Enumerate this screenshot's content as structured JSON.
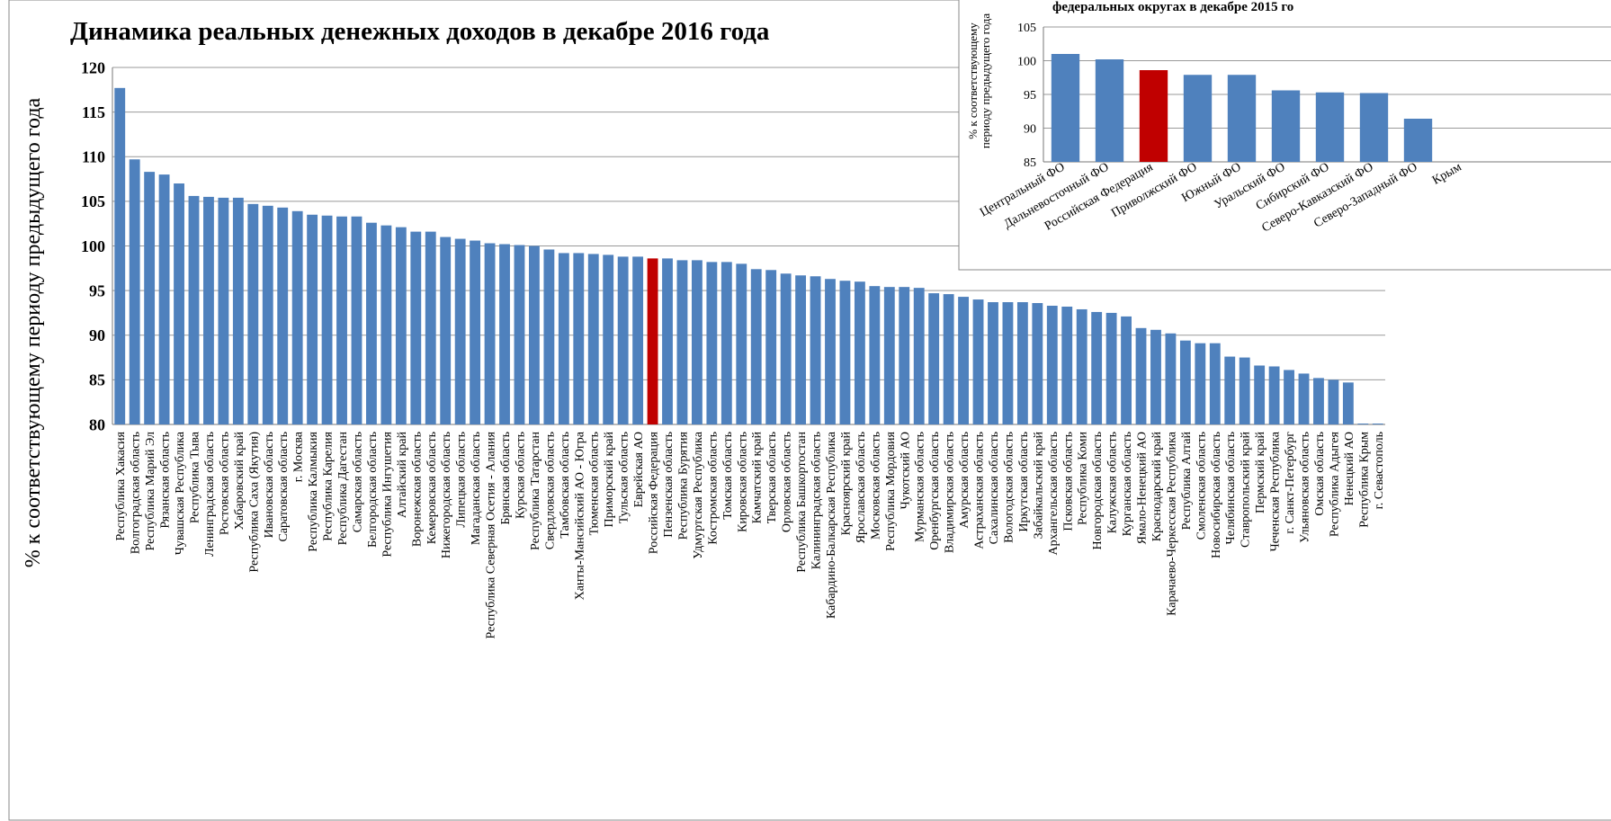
{
  "chart_data": [
    {
      "type": "bar",
      "title": "Динамика реальных денежных доходов  в декабре 2016 года",
      "ylabel": "% к соответствующему периоду предыдущего года",
      "categories": [
        "Республика Хакасия",
        "Волгоградская область",
        "Республика Марий Эл",
        "Рязанская область",
        "Чувашская Республика",
        "Республика Тыва",
        "Ленинградская область",
        "Ростовская область",
        "Хабаровский край",
        "Республика Саха (Якутия)",
        "Ивановская область",
        "Саратовская область",
        "г. Москва",
        "Республика Калмыкия",
        "Республика Карелия",
        "Республика Дагестан",
        "Самарская область",
        "Белгородская область",
        "Республика Ингушетия",
        "Алтайский край",
        "Воронежская область",
        "Кемеровская область",
        "Нижегородская область",
        "Липецкая область",
        "Магаданская область",
        "Республика Северная Осетия - Алания",
        "Брянская область",
        "Курская область",
        "Республика Татарстан",
        "Свердловская область",
        "Тамбовская область",
        "Ханты-Мансийский АО - Югра",
        "Тюменская область",
        "Приморский край",
        "Тульская область",
        "Еврейская АО",
        "Российская Федерация",
        "Пензенская область",
        "Республика Бурятия",
        "Удмуртская Республика",
        "Костромская область",
        "Томская область",
        "Кировская область",
        "Камчатский край",
        "Тверская область",
        "Орловская область",
        "Республика Башкортостан",
        "Калининградская область",
        "Кабардино-Балкарская Республика",
        "Красноярский край",
        "Ярославская область",
        "Московская область",
        "Республика Мордовия",
        "Чукотский АО",
        "Мурманская область",
        "Оренбургская область",
        "Владимирская область",
        "Амурская область",
        "Астраханская область",
        "Сахалинская область",
        "Вологодская область",
        "Иркутская область",
        "Забайкальский край",
        "Архангельская область",
        "Псковская область",
        "Республика Коми",
        "Новгородская область",
        "Калужская область",
        "Курганская область",
        "Ямало-Ненецкий АО",
        "Краснодарский край",
        "Карачаево-Черкесская Республика",
        "Республика Алтай",
        "Смоленская область",
        "Новосибирская область",
        "Челябинская область",
        "Ставропольский край",
        "Пермский край",
        "Чеченская Республика",
        "г. Санкт-Петербург",
        "Ульяновская область",
        "Омская область",
        "Республика Адыгея",
        "Ненецкий АО",
        "Республика Крым",
        "г. Севастополь"
      ],
      "values": [
        117.7,
        109.7,
        108.3,
        108.0,
        107.0,
        105.6,
        105.5,
        105.4,
        105.4,
        104.7,
        104.5,
        104.3,
        103.9,
        103.5,
        103.4,
        103.3,
        103.3,
        102.6,
        102.3,
        102.1,
        101.6,
        101.6,
        101.0,
        100.8,
        100.6,
        100.3,
        100.2,
        100.1,
        100.0,
        99.6,
        99.2,
        99.2,
        99.1,
        99.0,
        98.8,
        98.8,
        98.6,
        98.6,
        98.4,
        98.4,
        98.2,
        98.2,
        98.0,
        97.4,
        97.3,
        96.9,
        96.7,
        96.6,
        96.3,
        96.1,
        96.0,
        95.5,
        95.4,
        95.4,
        95.3,
        94.7,
        94.6,
        94.3,
        94.0,
        93.7,
        93.7,
        93.7,
        93.6,
        93.3,
        93.2,
        92.9,
        92.6,
        92.5,
        92.1,
        90.8,
        90.6,
        90.2,
        89.4,
        89.1,
        89.1,
        87.6,
        87.5,
        86.6,
        86.5,
        86.1,
        85.7,
        85.2,
        85.0,
        84.7,
        80.1,
        80.1
      ],
      "color": "#4f81bd",
      "highlight_index": 36,
      "highlight_color": "#c00000",
      "ylim": [
        80,
        120
      ],
      "yticks": [
        80,
        85,
        90,
        95,
        100,
        105,
        110,
        115,
        120
      ],
      "grid": true
    },
    {
      "type": "bar",
      "title": "федеральных округах в декабре 2015 го",
      "ylabel_lines": [
        "% к соответствующему",
        "периоду предыдущего года"
      ],
      "categories": [
        "Центральный ФО",
        "Дальневосточный ФО",
        "Российская Федерация",
        "Приволжский ФО",
        "Южный ФО",
        "Уральский ФО",
        "Сибирский ФО",
        "Северо-Кавказский ФО",
        "Северо-Западный ФО",
        "Крым"
      ],
      "values": [
        101.0,
        100.2,
        98.6,
        97.9,
        97.9,
        95.6,
        95.3,
        95.2,
        91.4,
        null
      ],
      "color": "#4f81bd",
      "highlight_index": 2,
      "highlight_color": "#c00000",
      "ylim": [
        85,
        105
      ],
      "yticks": [
        85,
        90,
        95,
        100,
        105
      ],
      "grid": true
    }
  ]
}
